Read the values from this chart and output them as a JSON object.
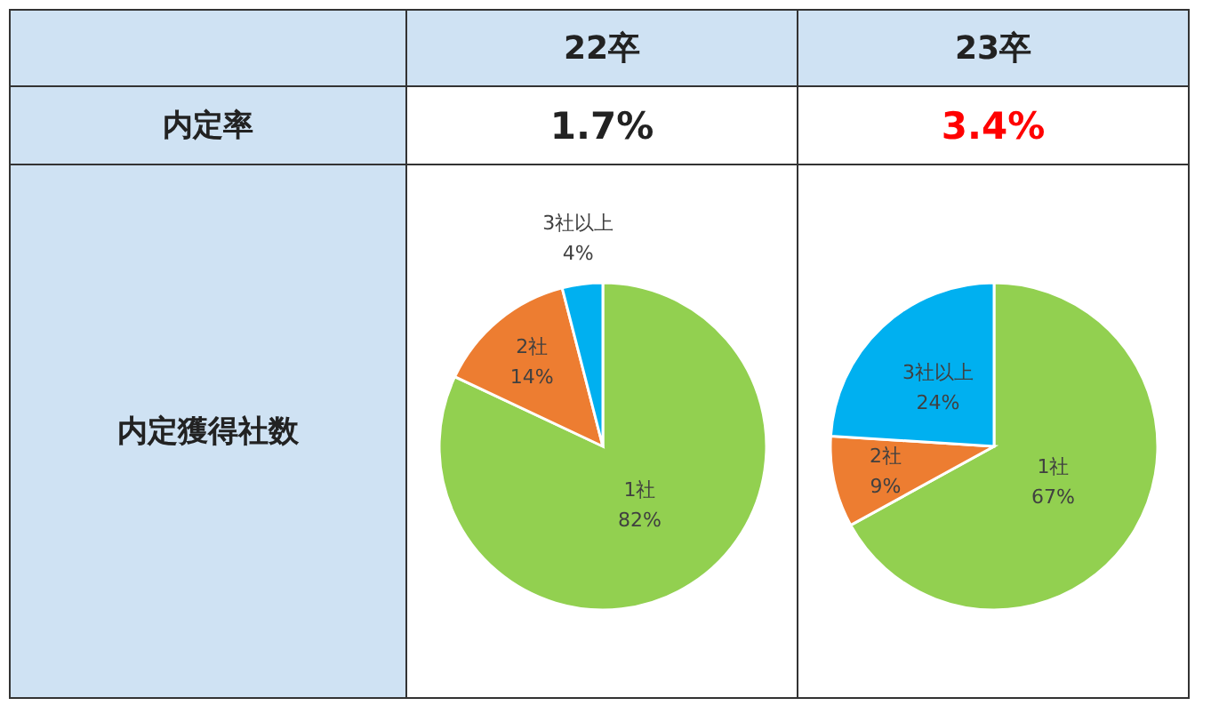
{
  "chart_data": [
    {
      "type": "other",
      "annotations": [
        "内定率",
        "内定獲得社数"
      ]
    },
    {
      "type": "pie",
      "title": "22卒",
      "annotations": [
        "1.7%"
      ],
      "categories": [
        "1社",
        "2社",
        "3社以上"
      ],
      "values": [
        82,
        14,
        4
      ],
      "value_labels": [
        "82%",
        "14%",
        "4%"
      ],
      "colors": [
        "#92d050",
        "#ed7d31",
        "#00b0f0"
      ]
    },
    {
      "type": "pie",
      "title": "23卒",
      "annotations": [
        "3.4%"
      ],
      "categories": [
        "1社",
        "2社",
        "3社以上"
      ],
      "values": [
        67,
        9,
        24
      ],
      "value_labels": [
        "67%",
        "9%",
        "24%"
      ],
      "colors": [
        "#92d050",
        "#ed7d31",
        "#00b0f0"
      ]
    }
  ]
}
